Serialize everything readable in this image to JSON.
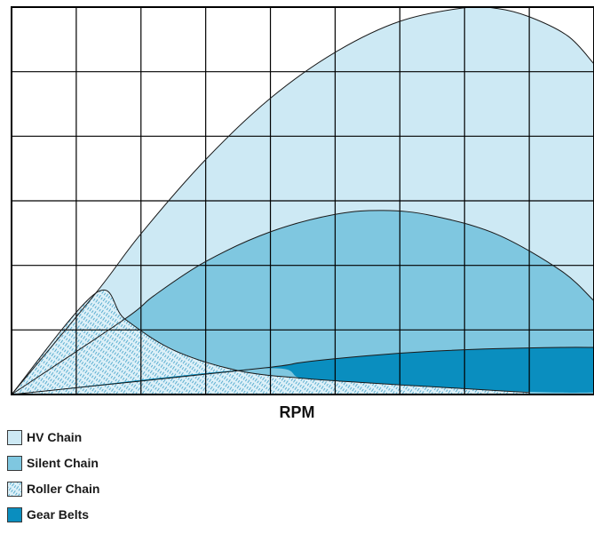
{
  "chart_data": {
    "type": "area",
    "title": "",
    "xlabel": "RPM",
    "ylabel": "",
    "grid": true,
    "xlim": [
      0,
      9
    ],
    "ylim": [
      0,
      6
    ],
    "legend_position": "bottom-left",
    "series": [
      {
        "name": "HV Chain",
        "color": "#cde9f4",
        "fill": "solid",
        "x": [
          0,
          1.3,
          2,
          3,
          4,
          5,
          6,
          7,
          7.5,
          8,
          8.6,
          9
        ],
        "upper": [
          0,
          1.57,
          2.49,
          3.64,
          4.59,
          5.3,
          5.78,
          5.99,
          5.98,
          5.85,
          5.55,
          5.12
        ],
        "lower": [
          0,
          0,
          0,
          0,
          0,
          0,
          0,
          0,
          0,
          0,
          0,
          0
        ]
      },
      {
        "name": "Silent Chain",
        "color": "#7fc7e0",
        "fill": "solid",
        "x": [
          0,
          1.75,
          2.2,
          3,
          4,
          5,
          5.75,
          6.5,
          7.5,
          8.5,
          9
        ],
        "upper": [
          0,
          1.17,
          1.53,
          2.06,
          2.52,
          2.79,
          2.85,
          2.77,
          2.48,
          1.91,
          1.45
        ],
        "lower": [
          0,
          0,
          0,
          0,
          0,
          0,
          0,
          0,
          0,
          0,
          0
        ]
      },
      {
        "name": "Roller Chain",
        "color": "#d8eef7",
        "fill": "hatched",
        "x": [
          0,
          1.3,
          1.75,
          2.5,
          3.5,
          4.5,
          5.5,
          6.5,
          7.5,
          8
        ],
        "upper": [
          0,
          1.57,
          1.17,
          0.69,
          0.37,
          0.25,
          0.18,
          0.12,
          0.06,
          0.03
        ],
        "lower": [
          0,
          0,
          0,
          0,
          0,
          0,
          0,
          0,
          0,
          0
        ]
      },
      {
        "name": "Gear Belts",
        "color": "#0a8ebf",
        "fill": "solid",
        "x": [
          0,
          3.8,
          4.5,
          5.5,
          6.5,
          7.5,
          8.5,
          9
        ],
        "upper": [
          0,
          0.4,
          0.5,
          0.6,
          0.67,
          0.71,
          0.73,
          0.73
        ],
        "lower": [
          0,
          0.4,
          0.25,
          0.18,
          0.12,
          0.06,
          0.03,
          0.03
        ]
      }
    ],
    "legend": [
      {
        "label": "HV Chain",
        "color": "#cde9f4",
        "fill": "solid"
      },
      {
        "label": "Silent Chain",
        "color": "#7fc7e0",
        "fill": "solid"
      },
      {
        "label": "Roller Chain",
        "color": "#d8eef7",
        "fill": "hatched"
      },
      {
        "label": "Gear Belts",
        "color": "#0a8ebf",
        "fill": "solid"
      }
    ]
  }
}
